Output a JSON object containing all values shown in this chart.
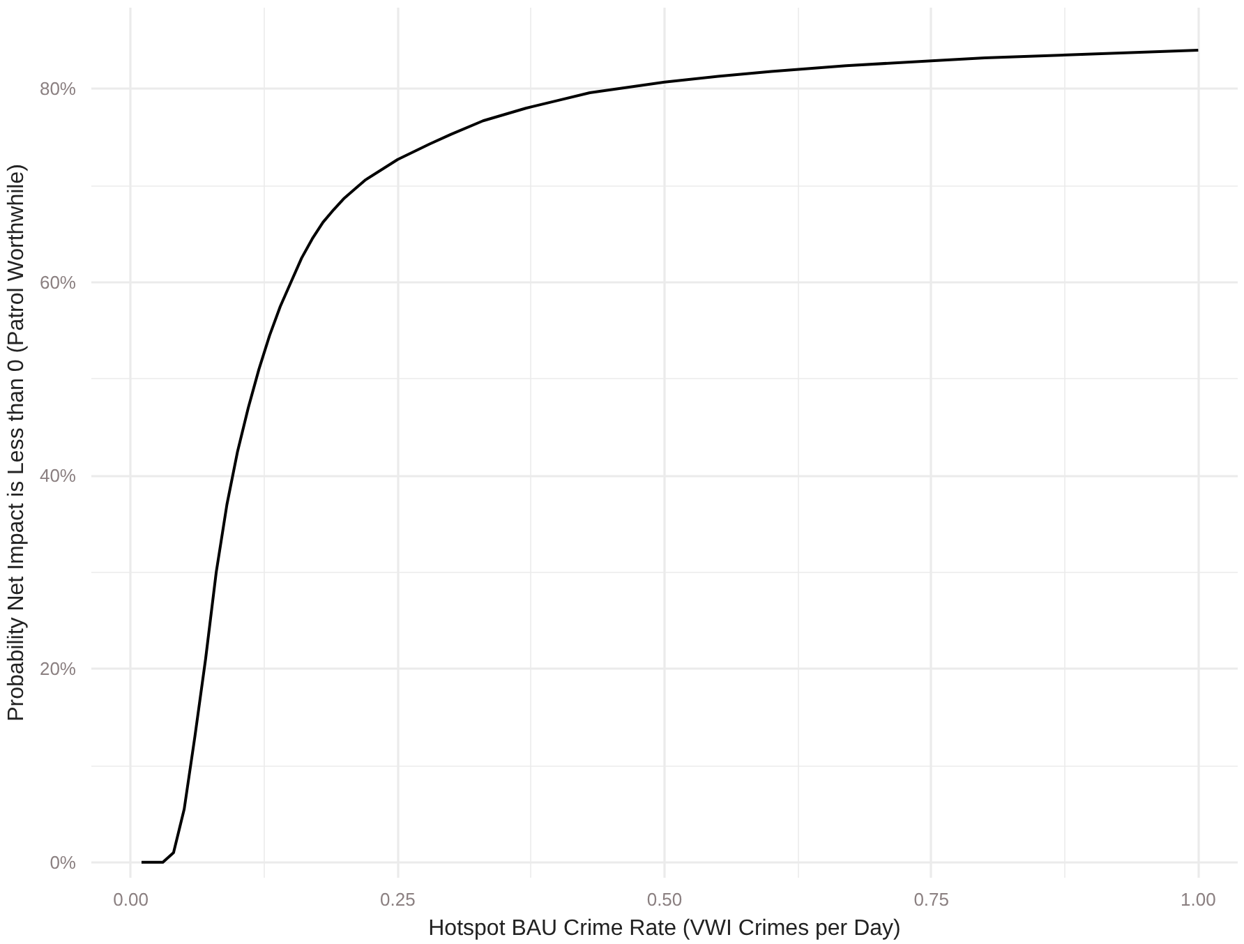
{
  "chart_data": {
    "type": "line",
    "xlabel": "Hotspot BAU Crime Rate (VWI Crimes per Day)",
    "ylabel": "Probability Net Impact is Less than 0 (Patrol Worthwhile)",
    "x": [
      0.01,
      0.02,
      0.03,
      0.04,
      0.05,
      0.06,
      0.07,
      0.08,
      0.09,
      0.1,
      0.11,
      0.12,
      0.13,
      0.14,
      0.15,
      0.16,
      0.17,
      0.18,
      0.19,
      0.2,
      0.22,
      0.25,
      0.28,
      0.3,
      0.33,
      0.37,
      0.4,
      0.43,
      0.5,
      0.55,
      0.6,
      0.67,
      0.75,
      0.8,
      0.9,
      1.0
    ],
    "series": [
      {
        "color": "#000000",
        "values": [
          0,
          0,
          0,
          1,
          5.5,
          13,
          21,
          30,
          37,
          42.5,
          47,
          51,
          54.5,
          57.5,
          60,
          62.5,
          64.5,
          66.2,
          67.5,
          68.7,
          70.6,
          72.7,
          74.3,
          75.3,
          76.7,
          78,
          78.8,
          79.6,
          80.7,
          81.3,
          81.8,
          82.4,
          82.9,
          83.2,
          83.6,
          84
        ]
      }
    ],
    "xlim": [
      -0.037,
      1.037
    ],
    "ylim": [
      -1.6,
      88.4
    ],
    "xticks": [
      {
        "value": 0,
        "label": "0.00"
      },
      {
        "value": 0.25,
        "label": "0.25"
      },
      {
        "value": 0.5,
        "label": "0.50"
      },
      {
        "value": 0.75,
        "label": "0.75"
      },
      {
        "value": 1,
        "label": "1.00"
      }
    ],
    "yticks": [
      {
        "value": 0,
        "label": "0%"
      },
      {
        "value": 20,
        "label": "20%"
      },
      {
        "value": 40,
        "label": "40%"
      },
      {
        "value": 60,
        "label": "60%"
      },
      {
        "value": 80,
        "label": "80%"
      }
    ],
    "grid": true,
    "line_style": "solid"
  }
}
